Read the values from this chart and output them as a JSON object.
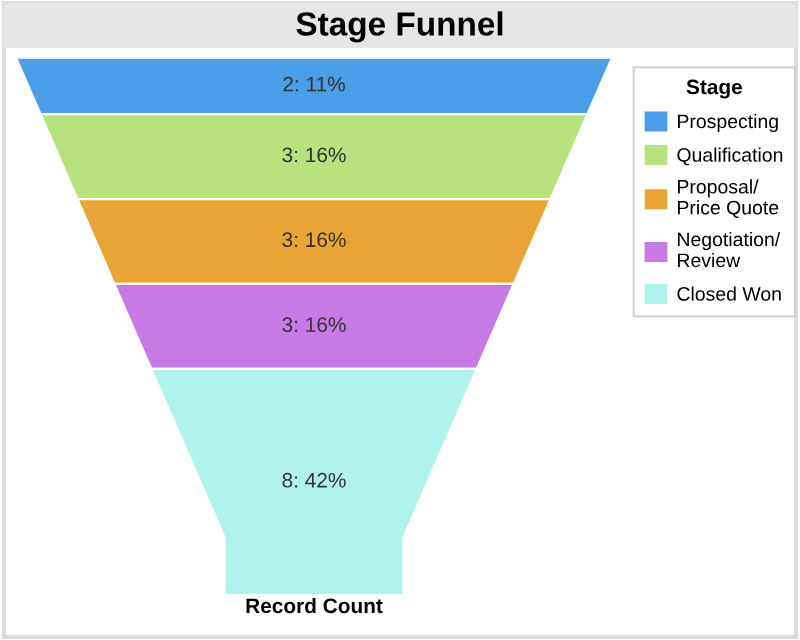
{
  "chart_data": {
    "type": "other",
    "title": "Stage Funnel",
    "xlabel": "Record Count",
    "legend_title": "Stage",
    "categories": [
      "Prospecting",
      "Qualification",
      "Proposal/\nPrice Quote",
      "Negotiation/\nReview",
      "Closed Won"
    ],
    "values": [
      2,
      3,
      3,
      3,
      8
    ],
    "value_labels": [
      "2: 11%",
      "3: 16%",
      "3: 16%",
      "3: 16%",
      "8: 42%"
    ],
    "colors": [
      "#4a9ee8",
      "#b8e27e",
      "#e8a535",
      "#c77ae6",
      "#b0f2ec"
    ]
  }
}
